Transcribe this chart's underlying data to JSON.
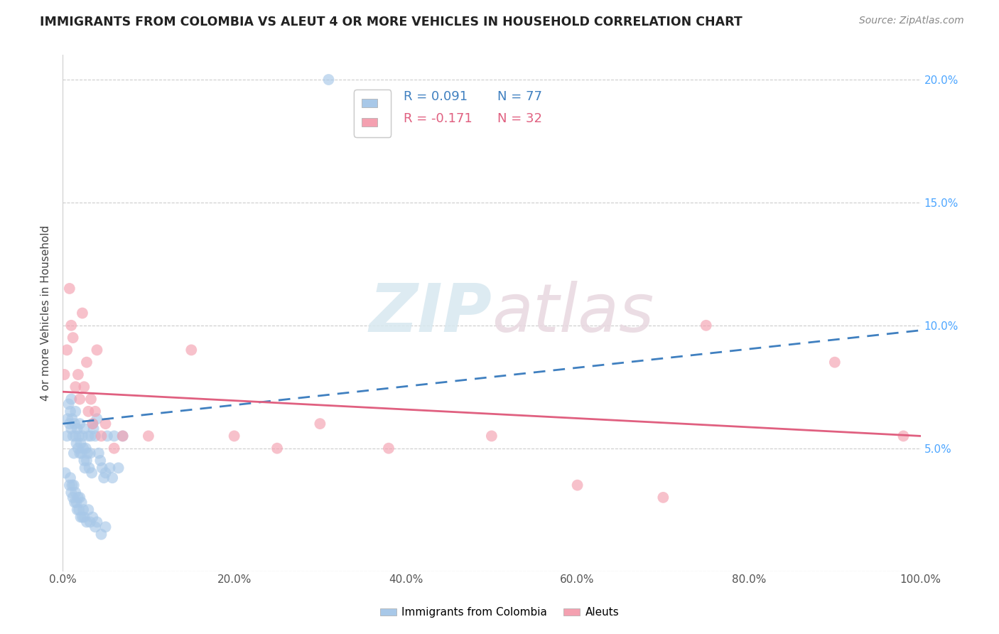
{
  "title": "IMMIGRANTS FROM COLOMBIA VS ALEUT 4 OR MORE VEHICLES IN HOUSEHOLD CORRELATION CHART",
  "source": "Source: ZipAtlas.com",
  "ylabel": "4 or more Vehicles in Household",
  "xlim": [
    0.0,
    1.0
  ],
  "ylim": [
    0.0,
    0.21
  ],
  "legend1_r": "R = 0.091",
  "legend1_n": "N = 77",
  "legend2_r": "R = -0.171",
  "legend2_n": "N = 32",
  "color_blue": "#a8c8e8",
  "color_pink": "#f4a0b0",
  "line_color_blue": "#4080c0",
  "line_color_pink": "#e06080",
  "watermark_zip": "ZIP",
  "watermark_atlas": "atlas",
  "scatter_blue_x": [
    0.003,
    0.005,
    0.006,
    0.007,
    0.008,
    0.009,
    0.01,
    0.01,
    0.011,
    0.012,
    0.013,
    0.014,
    0.015,
    0.015,
    0.016,
    0.017,
    0.018,
    0.019,
    0.02,
    0.02,
    0.021,
    0.022,
    0.023,
    0.024,
    0.025,
    0.025,
    0.026,
    0.027,
    0.028,
    0.029,
    0.03,
    0.031,
    0.032,
    0.033,
    0.034,
    0.035,
    0.036,
    0.038,
    0.04,
    0.042,
    0.044,
    0.046,
    0.048,
    0.05,
    0.052,
    0.055,
    0.058,
    0.06,
    0.065,
    0.07,
    0.008,
    0.009,
    0.01,
    0.011,
    0.012,
    0.013,
    0.014,
    0.015,
    0.016,
    0.017,
    0.018,
    0.019,
    0.02,
    0.021,
    0.022,
    0.023,
    0.024,
    0.025,
    0.028,
    0.03,
    0.032,
    0.035,
    0.038,
    0.04,
    0.045,
    0.05,
    0.31
  ],
  "scatter_blue_y": [
    0.04,
    0.055,
    0.062,
    0.068,
    0.06,
    0.065,
    0.058,
    0.07,
    0.062,
    0.055,
    0.048,
    0.06,
    0.055,
    0.065,
    0.052,
    0.058,
    0.05,
    0.055,
    0.048,
    0.06,
    0.052,
    0.048,
    0.055,
    0.05,
    0.045,
    0.058,
    0.042,
    0.05,
    0.045,
    0.048,
    0.055,
    0.042,
    0.048,
    0.055,
    0.04,
    0.06,
    0.058,
    0.055,
    0.062,
    0.048,
    0.045,
    0.042,
    0.038,
    0.04,
    0.055,
    0.042,
    0.038,
    0.055,
    0.042,
    0.055,
    0.035,
    0.038,
    0.032,
    0.035,
    0.03,
    0.035,
    0.028,
    0.032,
    0.028,
    0.025,
    0.03,
    0.025,
    0.03,
    0.022,
    0.028,
    0.022,
    0.025,
    0.022,
    0.02,
    0.025,
    0.02,
    0.022,
    0.018,
    0.02,
    0.015,
    0.018,
    0.2
  ],
  "scatter_pink_x": [
    0.002,
    0.005,
    0.008,
    0.01,
    0.012,
    0.015,
    0.018,
    0.02,
    0.023,
    0.025,
    0.028,
    0.03,
    0.033,
    0.035,
    0.038,
    0.04,
    0.045,
    0.05,
    0.06,
    0.07,
    0.1,
    0.15,
    0.2,
    0.25,
    0.3,
    0.38,
    0.5,
    0.6,
    0.7,
    0.75,
    0.9,
    0.98
  ],
  "scatter_pink_y": [
    0.08,
    0.09,
    0.115,
    0.1,
    0.095,
    0.075,
    0.08,
    0.07,
    0.105,
    0.075,
    0.085,
    0.065,
    0.07,
    0.06,
    0.065,
    0.09,
    0.055,
    0.06,
    0.05,
    0.055,
    0.055,
    0.09,
    0.055,
    0.05,
    0.06,
    0.05,
    0.055,
    0.035,
    0.03,
    0.1,
    0.085,
    0.055
  ],
  "blue_trend_start_y": 0.06,
  "blue_trend_end_y": 0.098,
  "pink_trend_start_y": 0.073,
  "pink_trend_end_y": 0.055
}
